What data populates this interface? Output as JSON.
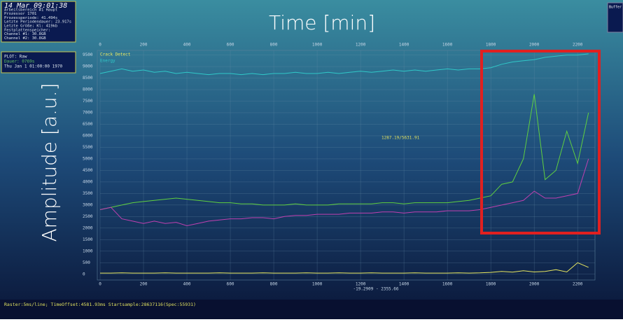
{
  "ui": {
    "status_box": [
      "14 Mar 09:01:38",
      "Arbeitsbereich #1 Haupt",
      "Prozessor 1701",
      "Prozessperiode: 41.494s",
      "Letzte Periodendauer: 23.917s",
      "Letzte Größe; Kl: 419kb",
      "Festplattenspeicher:",
      "Channel #1: 30.8GB",
      "Channel #2: 30.8GB"
    ],
    "plot_box": [
      "PLOT: Raw",
      "Dauer: 0769s",
      "Thu Jan 1 01:00:00 1970"
    ],
    "buffer_box": "Buffer",
    "footer": "Raster:5ms/line; TimeOffset:4581.93ms Startsample:28637116(Spec:55931)"
  },
  "chart_data": {
    "type": "line",
    "xlabel": "Time [min]",
    "ylabel": "Amplitude [a.u.]",
    "annotation": "1287.19/5631.91",
    "range_label": "-19.2909 - 2355.66",
    "x": [
      0,
      50,
      100,
      150,
      200,
      250,
      300,
      350,
      400,
      450,
      500,
      550,
      600,
      650,
      700,
      750,
      800,
      850,
      900,
      950,
      1000,
      1050,
      1100,
      1150,
      1200,
      1250,
      1300,
      1350,
      1400,
      1450,
      1500,
      1550,
      1600,
      1650,
      1700,
      1750,
      1800,
      1850,
      1900,
      1950,
      2000,
      2050,
      2100,
      2150,
      2200,
      2250
    ],
    "series": [
      {
        "name": "Crack Detect",
        "color": "#e8e860",
        "values": [
          50,
          50,
          60,
          50,
          50,
          50,
          60,
          50,
          50,
          50,
          50,
          60,
          50,
          50,
          50,
          60,
          50,
          50,
          50,
          60,
          50,
          50,
          60,
          50,
          50,
          60,
          50,
          50,
          50,
          60,
          50,
          50,
          50,
          60,
          50,
          60,
          80,
          120,
          90,
          150,
          100,
          120,
          200,
          100,
          500,
          300
        ]
      },
      {
        "name": "Energy",
        "color": "#30c8c8",
        "values": [
          8700,
          8800,
          8900,
          8800,
          8850,
          8750,
          8800,
          8700,
          8750,
          8700,
          8650,
          8700,
          8700,
          8650,
          8700,
          8650,
          8700,
          8700,
          8750,
          8700,
          8700,
          8750,
          8700,
          8750,
          8800,
          8750,
          8800,
          8850,
          8800,
          8850,
          8800,
          8850,
          8900,
          8850,
          8900,
          8900,
          8950,
          9100,
          9200,
          9250,
          9300,
          9400,
          9450,
          9500,
          9500,
          9550
        ]
      },
      {
        "color": "#60d040",
        "values": [
          2800,
          2900,
          3000,
          3100,
          3150,
          3200,
          3250,
          3300,
          3250,
          3200,
          3150,
          3100,
          3100,
          3050,
          3050,
          3000,
          3000,
          3000,
          3050,
          3000,
          3000,
          3000,
          3050,
          3050,
          3050,
          3050,
          3100,
          3100,
          3050,
          3100,
          3100,
          3100,
          3100,
          3150,
          3200,
          3300,
          3400,
          3900,
          4000,
          5000,
          7800,
          4100,
          4500,
          6200,
          4800,
          7000
        ]
      },
      {
        "color": "#c040b0",
        "values": [
          2800,
          2900,
          2400,
          2300,
          2200,
          2300,
          2200,
          2250,
          2100,
          2200,
          2300,
          2350,
          2400,
          2400,
          2450,
          2450,
          2400,
          2500,
          2550,
          2550,
          2600,
          2600,
          2600,
          2650,
          2650,
          2650,
          2700,
          2700,
          2650,
          2700,
          2700,
          2700,
          2750,
          2750,
          2750,
          2800,
          2900,
          3000,
          3100,
          3200,
          3600,
          3300,
          3300,
          3400,
          3500,
          5000
        ]
      }
    ],
    "xlim": [
      0,
      2280
    ],
    "xticks": [
      0,
      200,
      400,
      600,
      800,
      1000,
      1200,
      1400,
      1600,
      1800,
      2000,
      2200
    ],
    "ylim": [
      -250,
      9700
    ],
    "yticks": [
      0,
      500,
      1000,
      1500,
      2000,
      2500,
      3000,
      3500,
      4000,
      4500,
      5000,
      5500,
      6000,
      6500,
      7000,
      7500,
      8000,
      8500,
      9000,
      9500
    ],
    "grid": true
  }
}
